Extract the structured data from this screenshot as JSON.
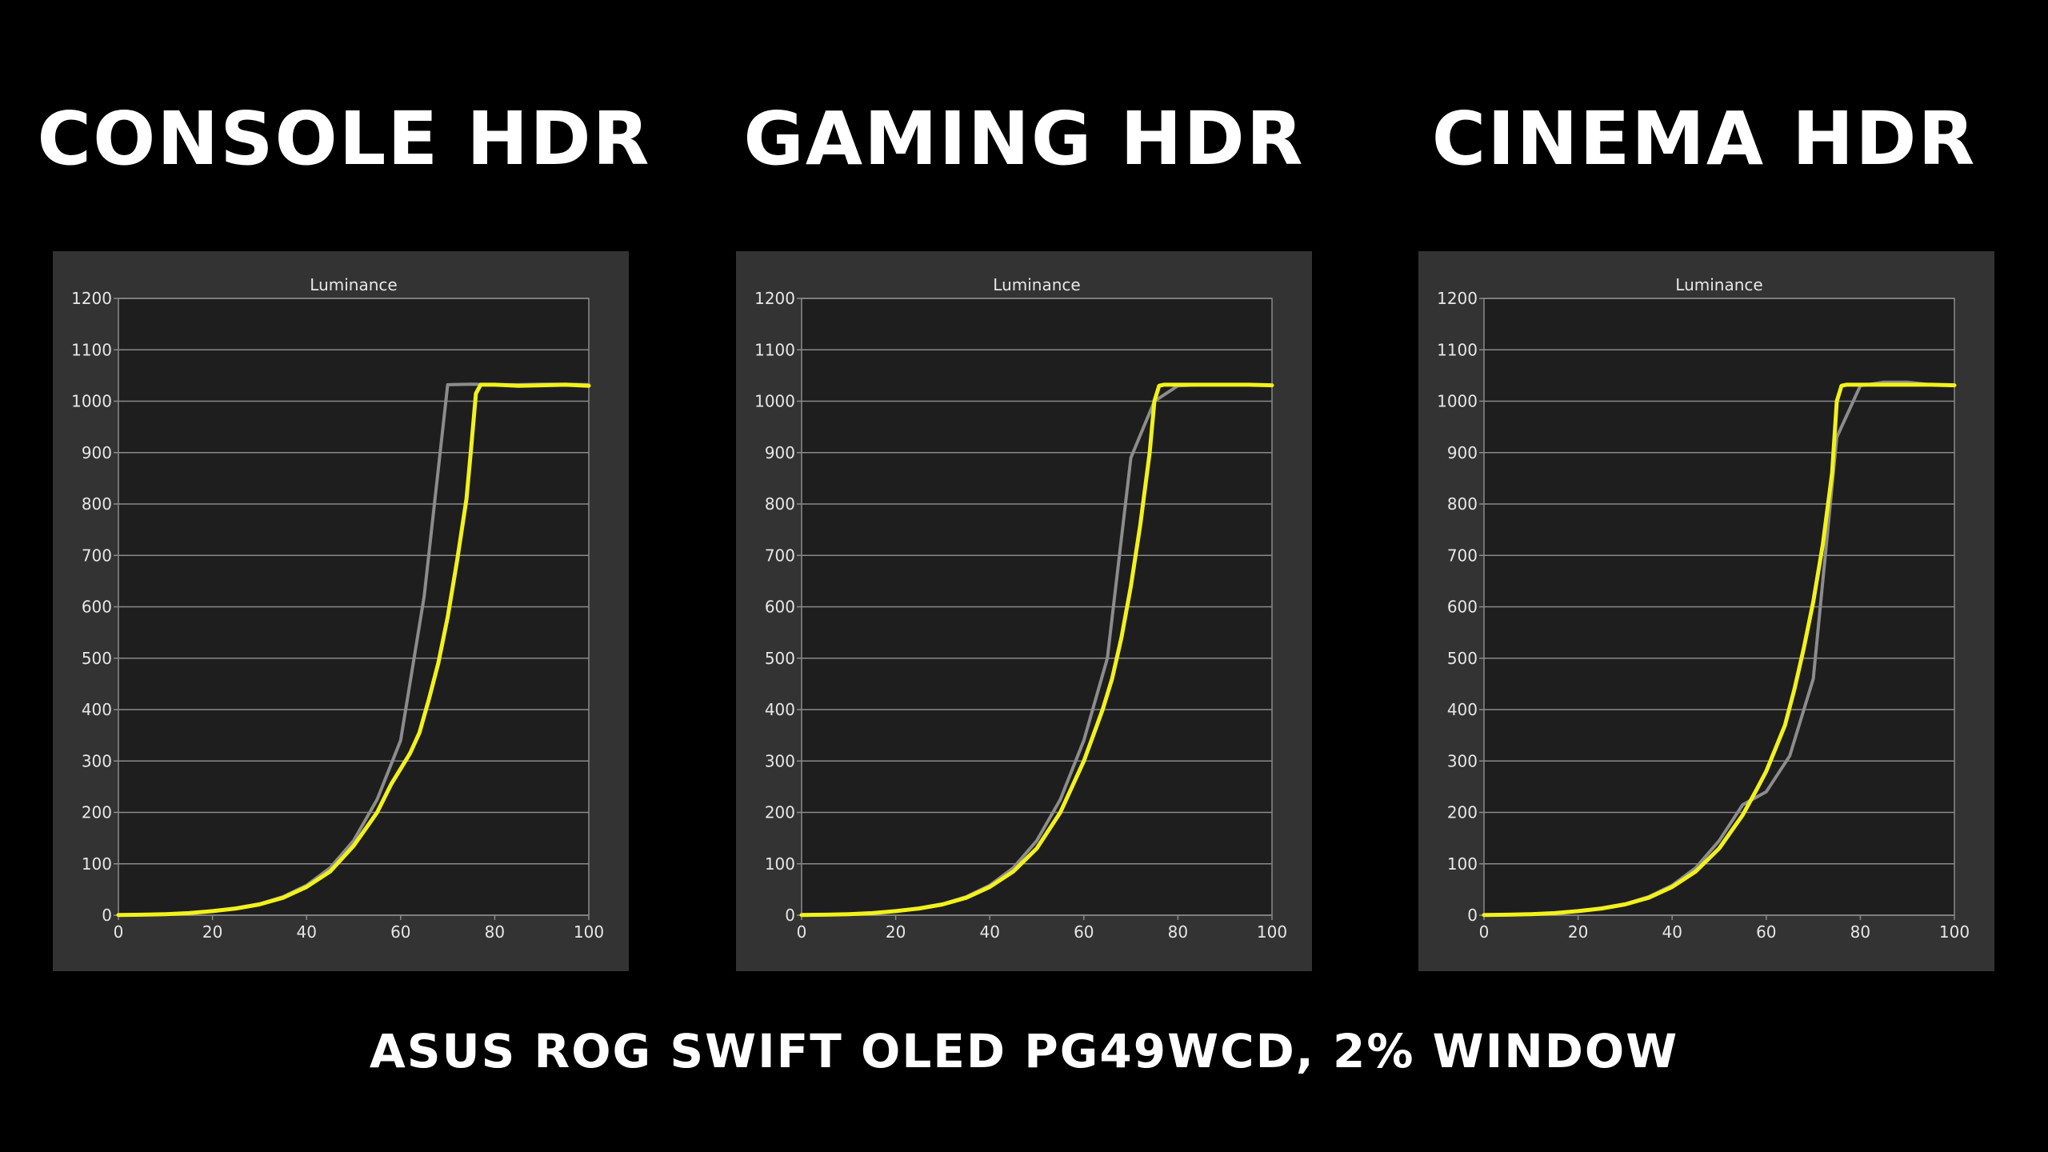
{
  "caption": "ASUS ROG SWIFT OLED PG49WCD, 2% WINDOW",
  "colors": {
    "background": "#000000",
    "panel": "#333333",
    "plot_area": "#1e1e1e",
    "gridline": "#8a8a8a",
    "axis_text": "#e6e6e6",
    "target_series": "#8c8c8c",
    "measured_series": "#f2f21a"
  },
  "chart_data": [
    {
      "type": "line",
      "heading": "CONSOLE HDR",
      "title": "Luminance",
      "xlim": [
        0,
        100
      ],
      "ylim": [
        0,
        1200
      ],
      "x_ticks": [
        0,
        20,
        40,
        60,
        80,
        100
      ],
      "y_ticks": [
        0,
        100,
        200,
        300,
        400,
        500,
        600,
        700,
        800,
        900,
        1000,
        1100,
        1200
      ],
      "grid": true,
      "series": [
        {
          "color": "#8c8c8c",
          "x": [
            0,
            5,
            10,
            15,
            20,
            25,
            30,
            35,
            40,
            45,
            50,
            55,
            60,
            65,
            70,
            75,
            80,
            85,
            90,
            95,
            100
          ],
          "y": [
            0.5,
            1,
            2,
            4,
            8,
            14,
            22,
            36,
            58,
            92,
            145,
            225,
            340,
            620,
            1032,
            1033,
            1032,
            1032,
            1033,
            1033,
            1032
          ]
        },
        {
          "color": "#f2f21a",
          "x": [
            0,
            5,
            10,
            15,
            20,
            25,
            30,
            35,
            40,
            45,
            50,
            55,
            58,
            60,
            62,
            64,
            66,
            68,
            70,
            72,
            74,
            75,
            76,
            77,
            78,
            80,
            85,
            90,
            95,
            100
          ],
          "y": [
            0.5,
            1,
            2,
            4,
            8,
            13,
            21,
            34,
            55,
            85,
            135,
            200,
            255,
            285,
            315,
            355,
            420,
            490,
            580,
            690,
            810,
            910,
            1015,
            1032,
            1032,
            1032,
            1030,
            1031,
            1032,
            1030
          ]
        }
      ]
    },
    {
      "type": "line",
      "heading": "GAMING HDR",
      "title": "Luminance",
      "xlim": [
        0,
        100
      ],
      "ylim": [
        0,
        1200
      ],
      "x_ticks": [
        0,
        20,
        40,
        60,
        80,
        100
      ],
      "y_ticks": [
        0,
        100,
        200,
        300,
        400,
        500,
        600,
        700,
        800,
        900,
        1000,
        1100,
        1200
      ],
      "grid": true,
      "series": [
        {
          "color": "#8c8c8c",
          "x": [
            0,
            5,
            10,
            15,
            20,
            25,
            30,
            35,
            40,
            45,
            50,
            55,
            60,
            65,
            70,
            75,
            80,
            85,
            90,
            95,
            100
          ],
          "y": [
            0.5,
            1,
            2,
            4,
            8,
            14,
            22,
            36,
            58,
            92,
            145,
            225,
            340,
            500,
            890,
            1000,
            1030,
            1032,
            1032,
            1032,
            1031
          ]
        },
        {
          "color": "#f2f21a",
          "x": [
            0,
            5,
            10,
            15,
            20,
            25,
            30,
            35,
            40,
            45,
            50,
            55,
            60,
            62,
            64,
            66,
            68,
            70,
            72,
            74,
            75,
            76,
            77,
            80,
            85,
            90,
            95,
            100
          ],
          "y": [
            0.5,
            1,
            2,
            4,
            8,
            13,
            21,
            34,
            55,
            85,
            130,
            200,
            300,
            350,
            400,
            460,
            540,
            640,
            760,
            900,
            1000,
            1030,
            1032,
            1032,
            1032,
            1032,
            1032,
            1031
          ]
        }
      ]
    },
    {
      "type": "line",
      "heading": "CINEMA HDR",
      "title": "Luminance",
      "xlim": [
        0,
        100
      ],
      "ylim": [
        0,
        1200
      ],
      "x_ticks": [
        0,
        20,
        40,
        60,
        80,
        100
      ],
      "y_ticks": [
        0,
        100,
        200,
        300,
        400,
        500,
        600,
        700,
        800,
        900,
        1000,
        1100,
        1200
      ],
      "grid": true,
      "series": [
        {
          "color": "#8c8c8c",
          "x": [
            0,
            5,
            10,
            15,
            20,
            25,
            30,
            35,
            40,
            45,
            50,
            55,
            60,
            65,
            70,
            75,
            80,
            85,
            90,
            95,
            100
          ],
          "y": [
            0.5,
            1,
            2,
            4,
            8,
            14,
            22,
            36,
            58,
            92,
            145,
            215,
            240,
            310,
            460,
            930,
            1030,
            1037,
            1037,
            1032,
            1031
          ]
        },
        {
          "color": "#f2f21a",
          "x": [
            0,
            5,
            10,
            15,
            20,
            25,
            30,
            35,
            40,
            45,
            50,
            55,
            58,
            60,
            62,
            64,
            66,
            68,
            70,
            72,
            74,
            75,
            76,
            77,
            80,
            85,
            90,
            95,
            100
          ],
          "y": [
            0.5,
            1,
            2,
            4,
            8,
            13,
            21,
            34,
            55,
            85,
            130,
            195,
            245,
            280,
            325,
            370,
            440,
            520,
            610,
            720,
            860,
            1000,
            1030,
            1032,
            1032,
            1032,
            1032,
            1032,
            1031
          ]
        }
      ]
    }
  ]
}
